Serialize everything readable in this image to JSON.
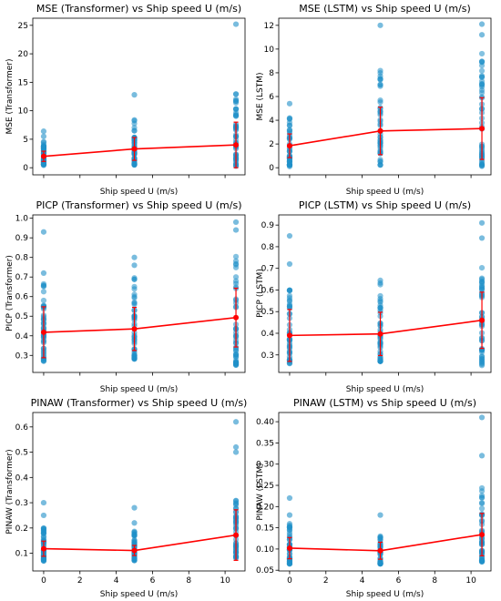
{
  "colors": {
    "scatter": "#1f8fc8",
    "mean": "#ff0000",
    "axis": "#000000",
    "background": "#ffffff"
  },
  "chart_data": [
    {
      "type": "scatter",
      "title": "MSE (Transformer) vs Ship speed U (m/s)",
      "xlabel": "Ship speed U (m/s)",
      "ylabel": "MSE (Transformer)",
      "xlim": [
        -0.6,
        11.1
      ],
      "ylim": [
        -1.25,
        26.25
      ],
      "xticks": [
        0,
        2,
        4,
        6,
        8,
        10
      ],
      "yticks": [
        0,
        5,
        10,
        15,
        20,
        25
      ],
      "ytick_labels": [
        "0",
        "5",
        "10",
        "15",
        "20",
        "25"
      ],
      "show_xtick_labels": false,
      "grid": false,
      "scatter": {
        "x": [
          0,
          5,
          10.6
        ],
        "ymin": [
          0.3,
          0.5,
          0.3
        ],
        "ymax": [
          4.6,
          9.0,
          13.0
        ],
        "outliers": [
          [
            0,
            5.5
          ],
          [
            0,
            6.4
          ],
          [
            5,
            12.8
          ],
          [
            10.6,
            25.2
          ],
          [
            10.6,
            11.7
          ],
          [
            10.6,
            12.0
          ]
        ]
      },
      "mean_line": {
        "x": [
          0,
          5,
          10.6
        ],
        "y": [
          2.0,
          3.3,
          4.0
        ],
        "err": [
          0.9,
          2.0,
          4.0
        ]
      }
    },
    {
      "type": "scatter",
      "title": "MSE (LSTM) vs Ship speed U (m/s)",
      "xlabel": "Ship speed U (m/s)",
      "ylabel": "MSE (LSTM)",
      "xlim": [
        -0.6,
        11.1
      ],
      "ylim": [
        -0.6,
        12.6
      ],
      "xticks": [
        0,
        2,
        4,
        6,
        8,
        10
      ],
      "yticks": [
        0,
        2,
        4,
        6,
        8,
        10,
        12
      ],
      "ytick_labels": [
        "0",
        "2",
        "4",
        "6",
        "8",
        "10",
        "12"
      ],
      "show_xtick_labels": false,
      "grid": false,
      "scatter": {
        "x": [
          0,
          5,
          10.6
        ],
        "ymin": [
          0.1,
          0.2,
          0.1
        ],
        "ymax": [
          4.3,
          8.3,
          10.4
        ],
        "outliers": [
          [
            0,
            5.4
          ],
          [
            5,
            12.0
          ],
          [
            10.6,
            12.1
          ],
          [
            10.6,
            11.2
          ]
        ]
      },
      "mean_line": {
        "x": [
          0,
          5,
          10.6
        ],
        "y": [
          1.85,
          3.1,
          3.3
        ],
        "err": [
          1.0,
          2.0,
          2.6
        ]
      }
    },
    {
      "type": "scatter",
      "title": "PICP (Transformer) vs Ship speed U (m/s)",
      "xlabel": "Ship speed U (m/s)",
      "ylabel": "PICP (Transformer)",
      "xlim": [
        -0.6,
        11.1
      ],
      "ylim": [
        0.213,
        1.017
      ],
      "xticks": [
        0,
        2,
        4,
        6,
        8,
        10
      ],
      "yticks": [
        0.3,
        0.4,
        0.5,
        0.6,
        0.7,
        0.8,
        0.9,
        1.0
      ],
      "ytick_labels": [
        "0.3",
        "0.4",
        "0.5",
        "0.6",
        "0.7",
        "0.8",
        "0.9",
        "1.0"
      ],
      "show_xtick_labels": false,
      "grid": false,
      "scatter": {
        "x": [
          0,
          5,
          10.6
        ],
        "ymin": [
          0.27,
          0.28,
          0.25
        ],
        "ymax": [
          0.67,
          0.7,
          0.84
        ],
        "outliers": [
          [
            0,
            0.72
          ],
          [
            0,
            0.93
          ],
          [
            5,
            0.76
          ],
          [
            5,
            0.8
          ],
          [
            10.6,
            0.94
          ],
          [
            10.6,
            0.98
          ]
        ]
      },
      "mean_line": {
        "x": [
          0,
          5,
          10.6
        ],
        "y": [
          0.418,
          0.435,
          0.493
        ],
        "err": [
          0.13,
          0.11,
          0.15
        ]
      }
    },
    {
      "type": "scatter",
      "title": "PICP (LSTM) vs Ship speed U (m/s)",
      "xlabel": "Ship speed U (m/s)",
      "ylabel": "PICP (LSTM)",
      "xlim": [
        -0.6,
        11.1
      ],
      "ylim": [
        0.219,
        0.947
      ],
      "xticks": [
        0,
        2,
        4,
        6,
        8,
        10
      ],
      "yticks": [
        0.3,
        0.4,
        0.5,
        0.6,
        0.7,
        0.8,
        0.9
      ],
      "ytick_labels": [
        "0.3",
        "0.4",
        "0.5",
        "0.6",
        "0.7",
        "0.8",
        "0.9"
      ],
      "show_xtick_labels": false,
      "grid": false,
      "scatter": {
        "x": [
          0,
          5,
          10.6
        ],
        "ymin": [
          0.26,
          0.27,
          0.25
        ],
        "ymax": [
          0.62,
          0.67,
          0.72
        ],
        "outliers": [
          [
            0,
            0.72
          ],
          [
            0,
            0.85
          ],
          [
            10.6,
            0.84
          ],
          [
            10.6,
            0.91
          ]
        ]
      },
      "mean_line": {
        "x": [
          0,
          5,
          10.6
        ],
        "y": [
          0.39,
          0.397,
          0.46
        ],
        "err": [
          0.12,
          0.1,
          0.13
        ]
      }
    },
    {
      "type": "scatter",
      "title": "PINAW (Transformer) vs Ship speed U (m/s)",
      "xlabel": "Ship speed U (m/s)",
      "ylabel": "PINAW (Transformer)",
      "xlim": [
        -0.6,
        11.1
      ],
      "ylim": [
        0.03,
        0.657
      ],
      "xticks": [
        0,
        2,
        4,
        6,
        8,
        10
      ],
      "yticks": [
        0.1,
        0.2,
        0.3,
        0.4,
        0.5,
        0.6
      ],
      "ytick_labels": [
        "0.1",
        "0.2",
        "0.3",
        "0.4",
        "0.5",
        "0.6"
      ],
      "show_xtick_labels": true,
      "xtick_labels": [
        "0",
        "2",
        "4",
        "6",
        "8",
        "10"
      ],
      "grid": false,
      "scatter": {
        "x": [
          0,
          5,
          10.6
        ],
        "ymin": [
          0.07,
          0.07,
          0.08
        ],
        "ymax": [
          0.2,
          0.19,
          0.32
        ],
        "outliers": [
          [
            0,
            0.25
          ],
          [
            0,
            0.3
          ],
          [
            5,
            0.22
          ],
          [
            5,
            0.28
          ],
          [
            10.6,
            0.5
          ],
          [
            10.6,
            0.52
          ],
          [
            10.6,
            0.62
          ]
        ]
      },
      "mean_line": {
        "x": [
          0,
          5,
          10.6
        ],
        "y": [
          0.118,
          0.111,
          0.172
        ],
        "err": [
          0.03,
          0.02,
          0.1
        ]
      }
    },
    {
      "type": "scatter",
      "title": "PINAW (LSTM) vs Ship speed U (m/s)",
      "xlabel": "Ship speed U (m/s)",
      "ylabel": "PINAW (LSTM)",
      "xlim": [
        -0.6,
        11.1
      ],
      "ylim": [
        0.0483,
        0.4217
      ],
      "xticks": [
        0,
        2,
        4,
        6,
        8,
        10
      ],
      "yticks": [
        0.05,
        0.1,
        0.15,
        0.2,
        0.25,
        0.3,
        0.35,
        0.4
      ],
      "ytick_labels": [
        "0.05",
        "0.10",
        "0.15",
        "0.20",
        "0.25",
        "0.30",
        "0.35",
        "0.40"
      ],
      "show_xtick_labels": true,
      "xtick_labels": [
        "0",
        "2",
        "4",
        "6",
        "8",
        "10"
      ],
      "grid": false,
      "scatter": {
        "x": [
          0,
          5,
          10.6
        ],
        "ymin": [
          0.065,
          0.065,
          0.07
        ],
        "ymax": [
          0.17,
          0.14,
          0.25
        ],
        "outliers": [
          [
            0,
            0.18
          ],
          [
            0,
            0.22
          ],
          [
            5,
            0.18
          ],
          [
            10.6,
            0.32
          ],
          [
            10.6,
            0.41
          ]
        ]
      },
      "mean_line": {
        "x": [
          0,
          5,
          10.6
        ],
        "y": [
          0.102,
          0.096,
          0.134
        ],
        "err": [
          0.025,
          0.02,
          0.05
        ]
      }
    }
  ]
}
